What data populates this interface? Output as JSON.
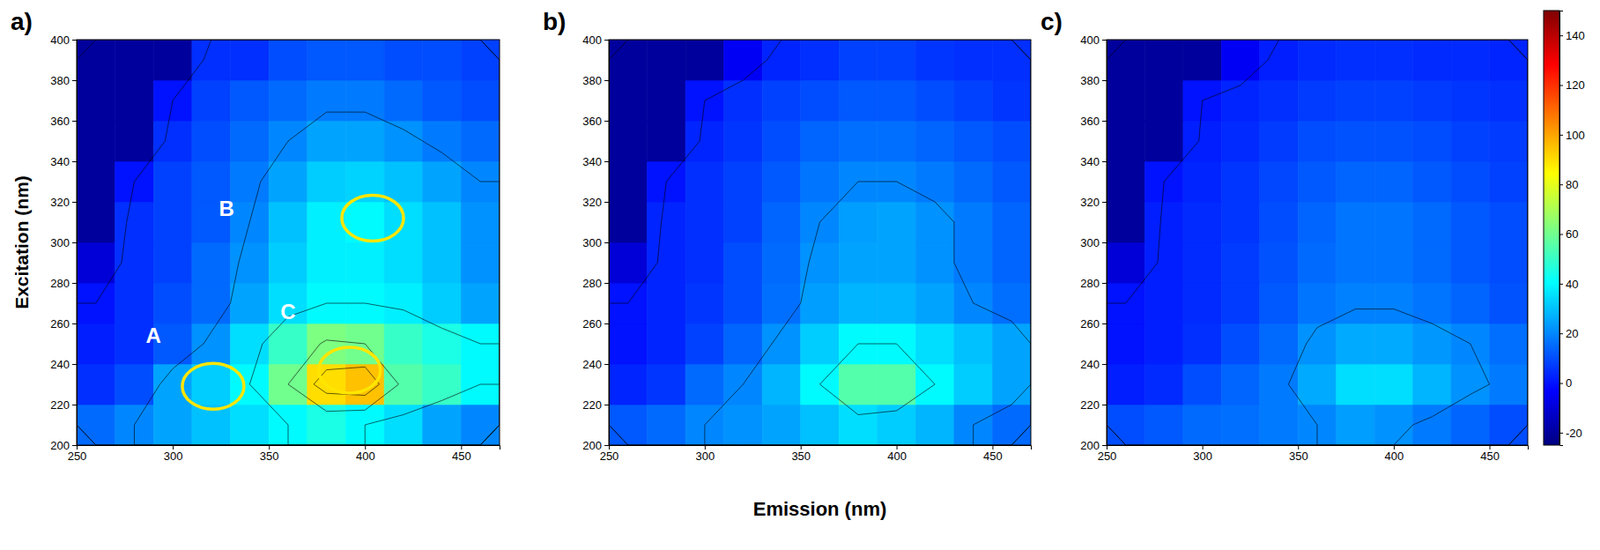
{
  "chart_data": [
    {
      "type": "heatmap",
      "title": "a)",
      "y_label": "Excitation (nm)",
      "x": [
        260,
        280,
        300,
        320,
        340,
        360,
        380,
        400,
        420,
        440,
        460
      ],
      "y": [
        210,
        230,
        250,
        270,
        290,
        310,
        330,
        350,
        370,
        390
      ],
      "z": [
        [
          15,
          20,
          25,
          30,
          35,
          40,
          45,
          40,
          35,
          25,
          20
        ],
        [
          5,
          10,
          25,
          32,
          40,
          60,
          90,
          95,
          55,
          50,
          40
        ],
        [
          2,
          5,
          12,
          22,
          35,
          50,
          62,
          60,
          50,
          45,
          40
        ],
        [
          0,
          5,
          10,
          15,
          25,
          35,
          40,
          40,
          38,
          32,
          25
        ],
        [
          -10,
          5,
          8,
          15,
          22,
          32,
          38,
          38,
          35,
          30,
          22
        ],
        [
          -20,
          5,
          8,
          12,
          20,
          30,
          38,
          40,
          35,
          30,
          22
        ],
        [
          -20,
          0,
          8,
          12,
          18,
          25,
          32,
          33,
          30,
          25,
          20
        ],
        [
          -20,
          -20,
          5,
          10,
          15,
          20,
          25,
          25,
          22,
          18,
          15
        ],
        [
          -20,
          -20,
          0,
          8,
          12,
          15,
          18,
          18,
          15,
          12,
          10
        ],
        [
          -20,
          -20,
          -20,
          5,
          5,
          10,
          12,
          12,
          10,
          10,
          8
        ]
      ],
      "xlim": [
        250,
        470
      ],
      "ylim": [
        200,
        400
      ],
      "xticks": [
        250,
        300,
        350,
        400,
        450
      ],
      "yticks": [
        200,
        220,
        240,
        260,
        280,
        300,
        320,
        340,
        360,
        380,
        400
      ],
      "annotations": [
        {
          "text": "A",
          "x": 290,
          "y": 253,
          "target": [
            321,
            229
          ]
        },
        {
          "text": "B",
          "x": 328,
          "y": 316,
          "target": [
            404,
            312
          ]
        },
        {
          "text": "C",
          "x": 360,
          "y": 265,
          "target": [
            392,
            237
          ]
        }
      ]
    },
    {
      "type": "heatmap",
      "title": "b)",
      "x_label": "Emission (nm)",
      "x": [
        260,
        280,
        300,
        320,
        340,
        360,
        380,
        400,
        420,
        440,
        460
      ],
      "y": [
        210,
        230,
        250,
        270,
        290,
        310,
        330,
        350,
        370,
        390
      ],
      "z": [
        [
          12,
          15,
          20,
          22,
          25,
          30,
          35,
          32,
          28,
          20,
          15
        ],
        [
          3,
          6,
          15,
          20,
          28,
          40,
          55,
          55,
          40,
          32,
          25
        ],
        [
          0,
          3,
          8,
          14,
          22,
          32,
          40,
          40,
          35,
          30,
          25
        ],
        [
          0,
          3,
          6,
          10,
          16,
          24,
          28,
          28,
          25,
          20,
          16
        ],
        [
          -10,
          3,
          5,
          10,
          15,
          22,
          25,
          25,
          22,
          18,
          14
        ],
        [
          -20,
          3,
          5,
          8,
          14,
          20,
          24,
          25,
          22,
          18,
          14
        ],
        [
          -20,
          0,
          5,
          8,
          12,
          17,
          20,
          20,
          18,
          15,
          12
        ],
        [
          -20,
          -20,
          3,
          6,
          10,
          14,
          16,
          16,
          14,
          12,
          10
        ],
        [
          -20,
          -20,
          0,
          5,
          8,
          10,
          12,
          12,
          10,
          8,
          6
        ],
        [
          -20,
          -20,
          -20,
          -5,
          3,
          5,
          8,
          8,
          6,
          5,
          5
        ]
      ],
      "xlim": [
        250,
        470
      ],
      "ylim": [
        200,
        400
      ],
      "xticks": [
        250,
        300,
        350,
        400,
        450
      ],
      "yticks": [
        200,
        220,
        240,
        260,
        280,
        300,
        320,
        340,
        360,
        380,
        400
      ]
    },
    {
      "type": "heatmap",
      "title": "c)",
      "x": [
        260,
        280,
        300,
        320,
        340,
        360,
        380,
        400,
        420,
        440,
        460
      ],
      "y": [
        210,
        230,
        250,
        270,
        290,
        310,
        330,
        350,
        370,
        390
      ],
      "z": [
        [
          10,
          12,
          15,
          16,
          18,
          20,
          24,
          22,
          18,
          14,
          10
        ],
        [
          2,
          4,
          10,
          14,
          18,
          26,
          35,
          35,
          28,
          22,
          18
        ],
        [
          0,
          2,
          5,
          10,
          15,
          22,
          26,
          26,
          23,
          20,
          16
        ],
        [
          0,
          2,
          4,
          7,
          12,
          17,
          19,
          19,
          17,
          14,
          11
        ],
        [
          -10,
          2,
          4,
          7,
          11,
          15,
          17,
          17,
          15,
          12,
          10
        ],
        [
          -20,
          2,
          4,
          6,
          10,
          14,
          17,
          17,
          15,
          12,
          10
        ],
        [
          -20,
          0,
          3,
          6,
          9,
          12,
          14,
          14,
          12,
          10,
          8
        ],
        [
          -20,
          -20,
          2,
          4,
          7,
          10,
          11,
          11,
          10,
          8,
          7
        ],
        [
          -20,
          -20,
          0,
          3,
          5,
          7,
          8,
          8,
          7,
          6,
          5
        ],
        [
          -20,
          -20,
          -20,
          -5,
          2,
          4,
          5,
          5,
          4,
          4,
          3
        ]
      ],
      "xlim": [
        250,
        470
      ],
      "ylim": [
        200,
        400
      ],
      "xticks": [
        250,
        300,
        350,
        400,
        450
      ],
      "yticks": [
        200,
        220,
        240,
        260,
        280,
        300,
        320,
        340,
        360,
        380,
        400
      ],
      "colorbar": {
        "range": [
          -25,
          150
        ],
        "ticks": [
          -20,
          0,
          20,
          40,
          60,
          80,
          100,
          120,
          140
        ]
      }
    }
  ]
}
